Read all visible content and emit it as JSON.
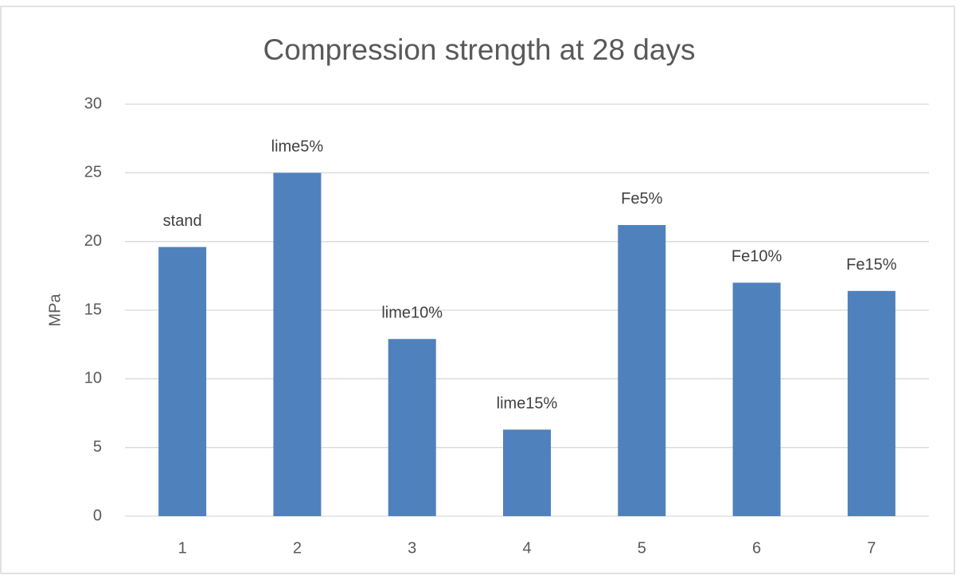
{
  "chart_data": {
    "type": "bar",
    "title": "Compression strength at 28 days",
    "y_label": "MPa",
    "categories": [
      "1",
      "2",
      "3",
      "4",
      "5",
      "6",
      "7"
    ],
    "values": [
      19.6,
      25,
      12.9,
      6.3,
      21.2,
      17,
      16.4
    ],
    "annotations": [
      "stand",
      "lime5%",
      "lime10%",
      "lime15%",
      "Fe5%",
      "Fe10%",
      "Fe15%"
    ],
    "color": "#4f81bd",
    "ylim": [
      0,
      30
    ],
    "yticks": [
      0,
      5,
      10,
      15,
      20,
      25,
      30
    ],
    "grid": true
  }
}
